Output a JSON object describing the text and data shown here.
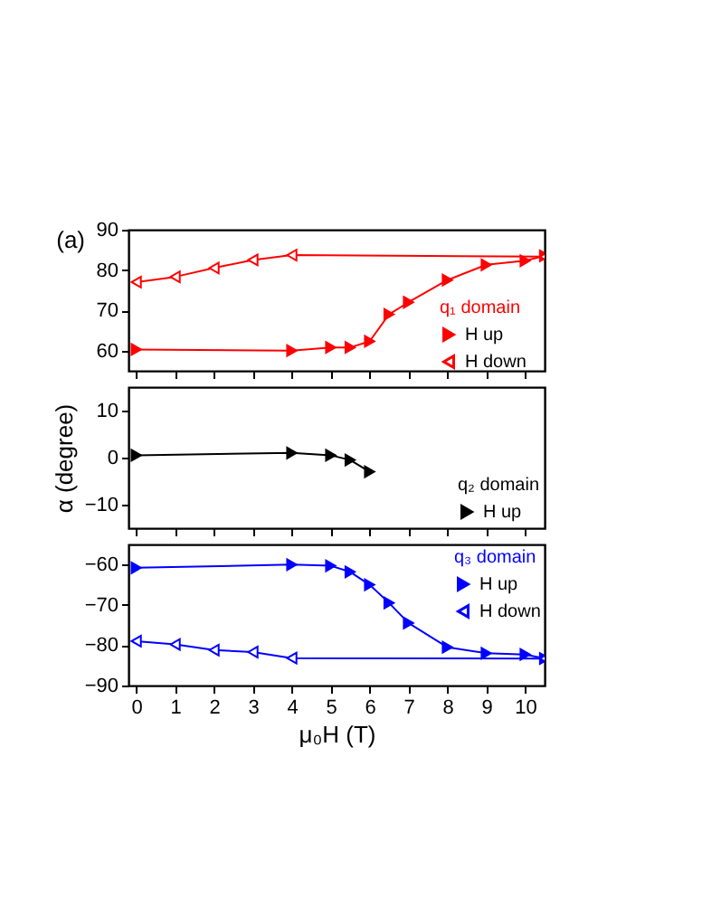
{
  "chart_data": [
    {
      "type": "line",
      "legend_title": "q₁ domain",
      "annotations": [
        "(a)"
      ],
      "xlim": [
        -0.2,
        10.5
      ],
      "xticks": [
        0,
        1,
        2,
        3,
        4,
        5,
        6,
        7,
        8,
        9,
        10
      ],
      "ylim": [
        55,
        90
      ],
      "yticks": [
        60,
        70,
        80,
        90
      ],
      "tick_labels": "y",
      "grid": false,
      "legend": "right",
      "marker": "triangle",
      "series": [
        {
          "name": "H up",
          "color": "#ff0000",
          "x": [
            0,
            4,
            5,
            5.5,
            6,
            6.5,
            7,
            8,
            9,
            10,
            10.5
          ],
          "values": [
            60.3,
            60,
            60.8,
            60.8,
            62.3,
            69,
            72,
            77.5,
            81.3,
            82.3,
            83.5
          ]
        },
        {
          "name": "H down",
          "color": "#ff0000",
          "x": [
            0,
            1,
            2,
            3,
            4,
            10.5
          ],
          "values": [
            77,
            78.3,
            80.5,
            82.5,
            83.7,
            83.3
          ]
        }
      ]
    },
    {
      "type": "line",
      "legend_title": "q₂ domain",
      "ylabel": "α (degree)",
      "xlim": [
        -0.2,
        10.5
      ],
      "xticks": [
        0,
        1,
        2,
        3,
        4,
        5,
        6,
        7,
        8,
        9,
        10
      ],
      "ylim": [
        -15,
        15
      ],
      "yticks": [
        -10,
        0,
        10
      ],
      "tick_labels": "y",
      "grid": false,
      "legend": "bottom right",
      "marker": "triangle",
      "series": [
        {
          "name": "H up",
          "color": "#000000",
          "x": [
            0,
            4,
            5,
            5.5,
            6
          ],
          "values": [
            0.5,
            1,
            0.5,
            -0.5,
            -3
          ]
        }
      ]
    },
    {
      "type": "line",
      "legend_title": "q₃ domain",
      "xlabel": "μ₀H (T)",
      "xlim": [
        -0.2,
        10.5
      ],
      "xticks": [
        0,
        1,
        2,
        3,
        4,
        5,
        6,
        7,
        8,
        9,
        10
      ],
      "ylim": [
        -90,
        -55
      ],
      "yticks": [
        -90,
        -80,
        -70,
        -60
      ],
      "grid": false,
      "legend": "top right",
      "marker": "triangle",
      "series": [
        {
          "name": "H up",
          "color": "#0000ff",
          "x": [
            0,
            4,
            5,
            5.5,
            6,
            6.5,
            7,
            8,
            9,
            10,
            10.5
          ],
          "values": [
            -60.8,
            -60,
            -60.3,
            -61.8,
            -65,
            -69.5,
            -74.5,
            -80.5,
            -82,
            -82.3,
            -83.3
          ]
        },
        {
          "name": "H down",
          "color": "#0000ff",
          "x": [
            0,
            1,
            2,
            3,
            4,
            10.5
          ],
          "values": [
            -79,
            -79.8,
            -81.2,
            -81.7,
            -83.2,
            -83.3
          ]
        }
      ]
    }
  ]
}
